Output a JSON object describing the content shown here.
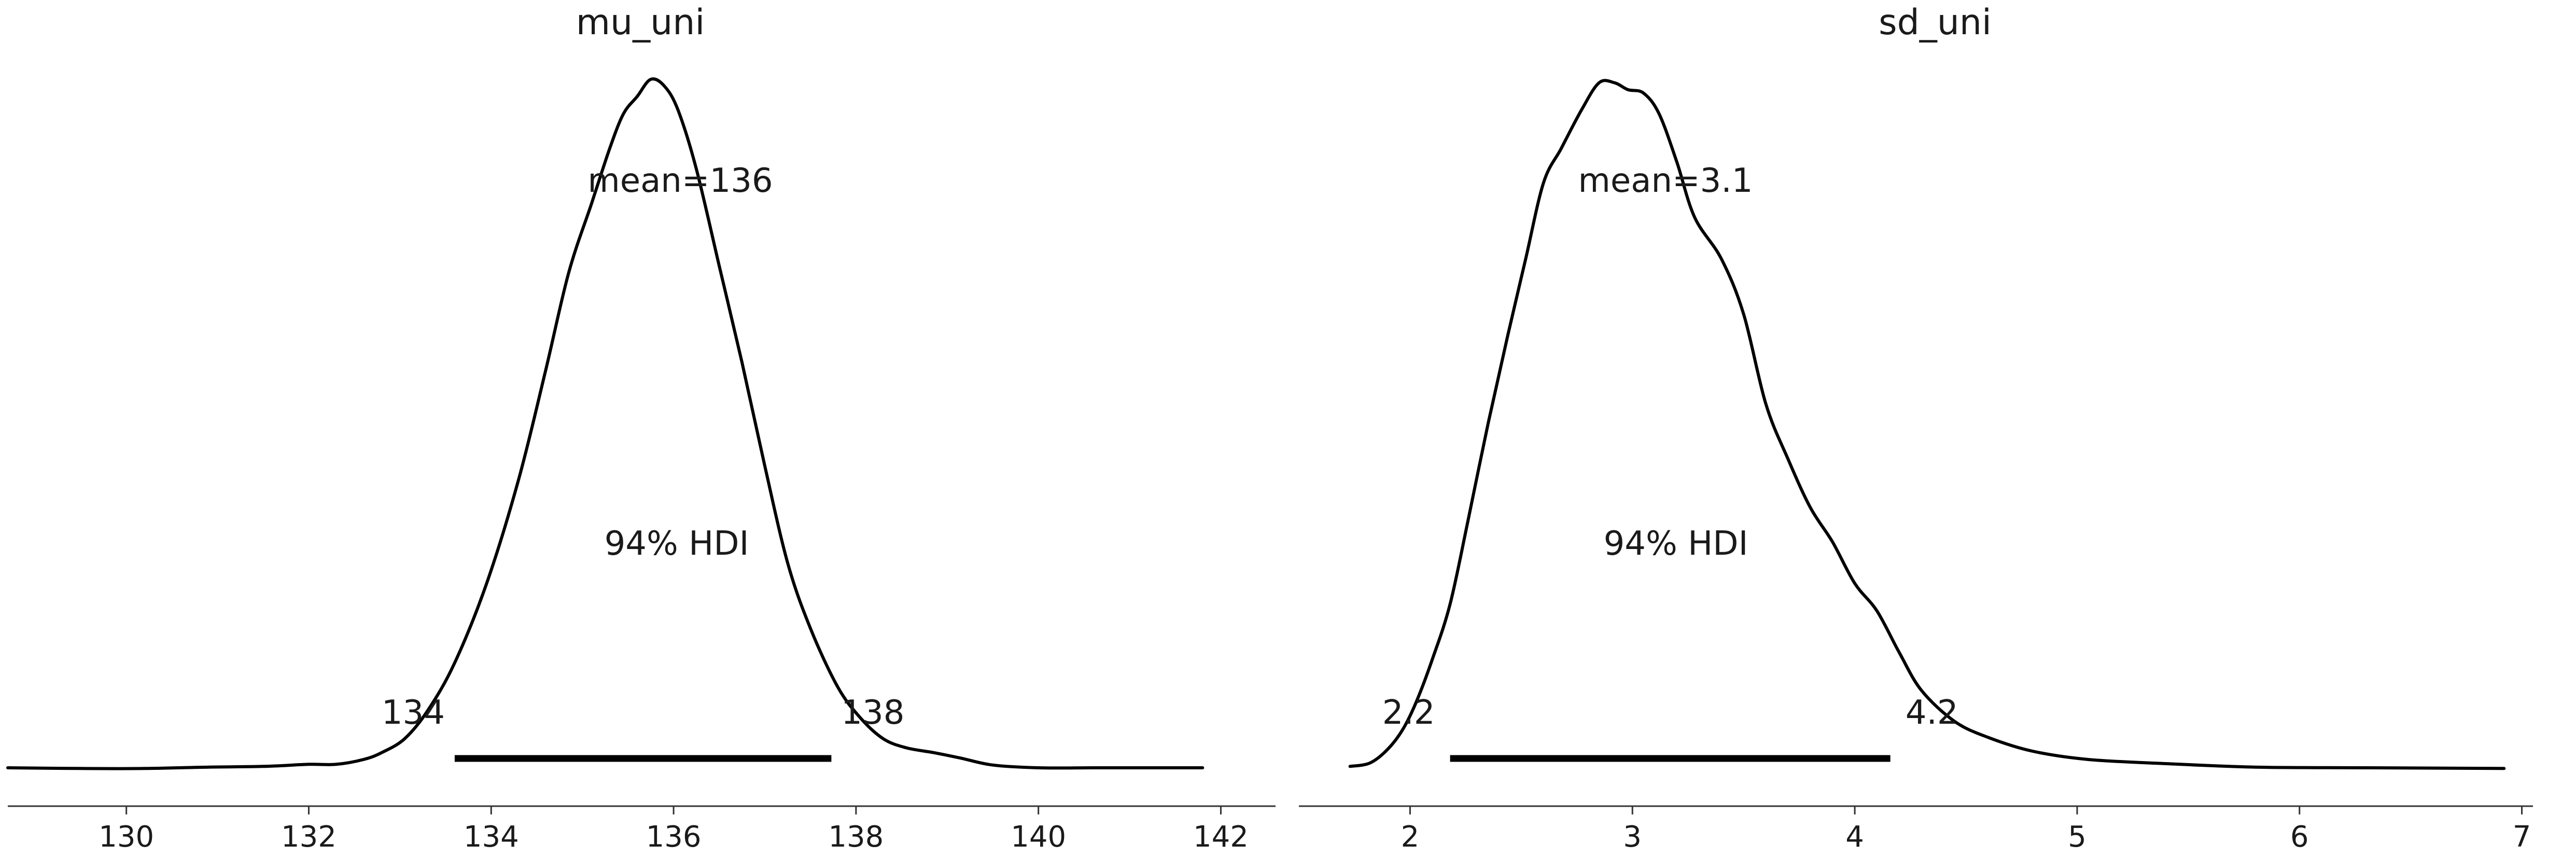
{
  "chart_data": [
    {
      "type": "density",
      "title": "mu_uni",
      "x_ticks": [
        130,
        132,
        134,
        136,
        138,
        140,
        142
      ],
      "xlim": [
        128.7,
        142.6
      ],
      "mean_label": "mean=136",
      "hdi_label": "94% HDI",
      "hdi": [
        133.6,
        137.73
      ],
      "hdi_low_label": "134",
      "hdi_high_label": "138",
      "density_points": [
        [
          128.7,
          0.003
        ],
        [
          129.5,
          0.002
        ],
        [
          130.2,
          0.002
        ],
        [
          130.9,
          0.004
        ],
        [
          131.5,
          0.005
        ],
        [
          132.0,
          0.008
        ],
        [
          132.3,
          0.008
        ],
        [
          132.6,
          0.015
        ],
        [
          132.8,
          0.025
        ],
        [
          133.05,
          0.045
        ],
        [
          133.3,
          0.085
        ],
        [
          133.6,
          0.155
        ],
        [
          133.95,
          0.27
        ],
        [
          134.3,
          0.42
        ],
        [
          134.6,
          0.58
        ],
        [
          134.85,
          0.72
        ],
        [
          135.1,
          0.82
        ],
        [
          135.3,
          0.9
        ],
        [
          135.45,
          0.95
        ],
        [
          135.6,
          0.975
        ],
        [
          135.75,
          1.0
        ],
        [
          135.9,
          0.99
        ],
        [
          136.05,
          0.955
        ],
        [
          136.25,
          0.87
        ],
        [
          136.5,
          0.73
        ],
        [
          136.75,
          0.59
        ],
        [
          137.0,
          0.44
        ],
        [
          137.25,
          0.3
        ],
        [
          137.5,
          0.205
        ],
        [
          137.8,
          0.12
        ],
        [
          138.05,
          0.075
        ],
        [
          138.3,
          0.045
        ],
        [
          138.55,
          0.032
        ],
        [
          138.85,
          0.025
        ],
        [
          139.15,
          0.017
        ],
        [
          139.5,
          0.007
        ],
        [
          140.0,
          0.003
        ],
        [
          140.6,
          0.003
        ],
        [
          141.2,
          0.003
        ],
        [
          141.8,
          0.003
        ]
      ]
    },
    {
      "type": "density",
      "title": "sd_uni",
      "x_ticks": [
        2,
        3,
        4,
        5,
        6,
        7
      ],
      "xlim": [
        1.5,
        7.05
      ],
      "mean_label": "mean=3.1",
      "hdi_label": "94% HDI",
      "hdi": [
        2.18,
        4.16
      ],
      "hdi_low_label": "2.2",
      "hdi_high_label": "4.2",
      "density_points": [
        [
          1.73,
          0.005
        ],
        [
          1.82,
          0.01
        ],
        [
          1.9,
          0.03
        ],
        [
          1.97,
          0.06
        ],
        [
          2.03,
          0.1
        ],
        [
          2.1,
          0.16
        ],
        [
          2.18,
          0.24
        ],
        [
          2.26,
          0.36
        ],
        [
          2.35,
          0.5
        ],
        [
          2.44,
          0.63
        ],
        [
          2.52,
          0.74
        ],
        [
          2.6,
          0.85
        ],
        [
          2.68,
          0.9
        ],
        [
          2.77,
          0.955
        ],
        [
          2.85,
          0.995
        ],
        [
          2.92,
          0.995
        ],
        [
          2.98,
          0.985
        ],
        [
          3.05,
          0.98
        ],
        [
          3.12,
          0.95
        ],
        [
          3.2,
          0.88
        ],
        [
          3.28,
          0.8
        ],
        [
          3.4,
          0.74
        ],
        [
          3.5,
          0.66
        ],
        [
          3.6,
          0.53
        ],
        [
          3.7,
          0.45
        ],
        [
          3.8,
          0.38
        ],
        [
          3.9,
          0.33
        ],
        [
          4.0,
          0.27
        ],
        [
          4.1,
          0.23
        ],
        [
          4.2,
          0.17
        ],
        [
          4.3,
          0.115
        ],
        [
          4.45,
          0.07
        ],
        [
          4.6,
          0.047
        ],
        [
          4.8,
          0.027
        ],
        [
          5.05,
          0.015
        ],
        [
          5.4,
          0.009
        ],
        [
          5.8,
          0.004
        ],
        [
          6.3,
          0.003
        ],
        [
          6.92,
          0.002
        ]
      ]
    }
  ]
}
